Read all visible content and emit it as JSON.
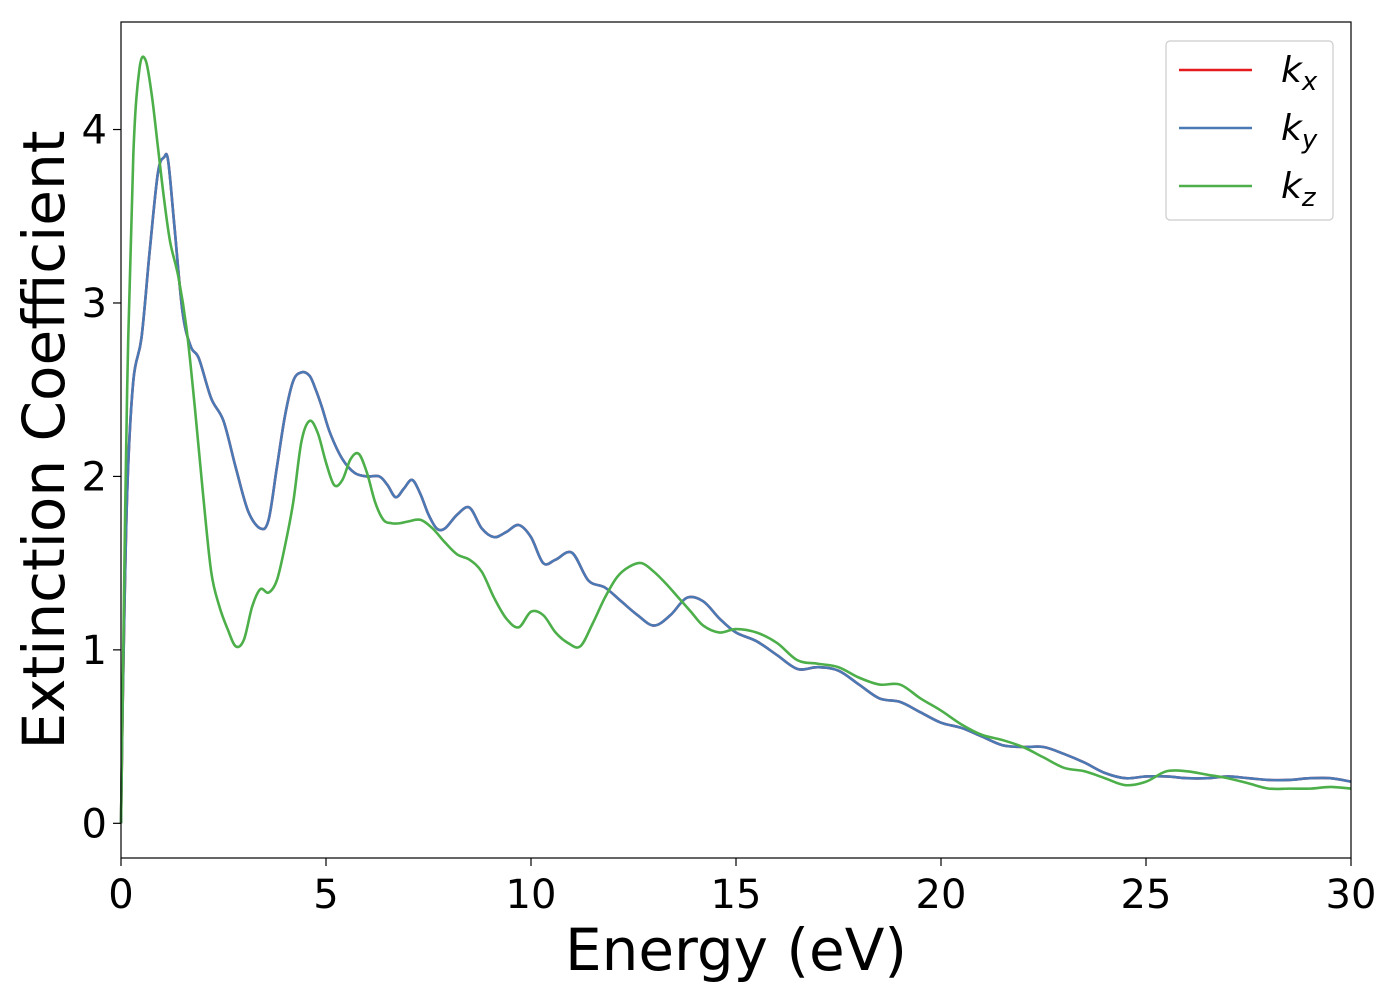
{
  "chart_data": {
    "type": "line",
    "xlabel": "Energy (eV)",
    "ylabel": "Extinction Coefficient",
    "xlim": [
      0,
      30
    ],
    "ylim": [
      -0.2,
      4.62
    ],
    "xticks": [
      0,
      5,
      10,
      15,
      20,
      25,
      30
    ],
    "yticks": [
      0,
      1,
      2,
      3,
      4
    ],
    "grid": false,
    "legend_position": "top-right",
    "series": [
      {
        "name": "k_x",
        "label_base": "k",
        "label_sub": "x",
        "color": "#e41a1c",
        "x": [
          0,
          0.05,
          0.15,
          0.3,
          0.5,
          0.7,
          0.9,
          1.05,
          1.15,
          1.3,
          1.5,
          1.7,
          1.9,
          2.2,
          2.5,
          2.8,
          3.1,
          3.4,
          3.6,
          3.8,
          4.0,
          4.2,
          4.4,
          4.6,
          4.75,
          4.9,
          5.1,
          5.4,
          5.7,
          6.0,
          6.3,
          6.5,
          6.7,
          6.9,
          7.1,
          7.3,
          7.5,
          7.7,
          7.9,
          8.2,
          8.5,
          8.8,
          9.1,
          9.4,
          9.7,
          10.0,
          10.3,
          10.6,
          11.0,
          11.4,
          11.8,
          12.2,
          12.6,
          13.0,
          13.4,
          13.8,
          14.2,
          14.6,
          15.0,
          15.5,
          16.0,
          16.5,
          17.0,
          17.5,
          18.0,
          18.5,
          19.0,
          19.5,
          20.0,
          20.5,
          21.0,
          21.5,
          22.0,
          22.5,
          23.0,
          23.5,
          24.0,
          24.5,
          25.0,
          25.5,
          26.0,
          26.5,
          27.0,
          27.5,
          28.0,
          28.5,
          29.0,
          29.5,
          30.0
        ],
        "y": [
          0,
          0.8,
          1.9,
          2.55,
          2.8,
          3.3,
          3.75,
          3.84,
          3.82,
          3.45,
          2.95,
          2.75,
          2.68,
          2.45,
          2.32,
          2.05,
          1.8,
          1.7,
          1.75,
          2.05,
          2.35,
          2.55,
          2.6,
          2.58,
          2.5,
          2.4,
          2.25,
          2.1,
          2.02,
          2.0,
          2.0,
          1.95,
          1.88,
          1.93,
          1.98,
          1.9,
          1.78,
          1.7,
          1.7,
          1.78,
          1.82,
          1.7,
          1.65,
          1.68,
          1.72,
          1.65,
          1.5,
          1.52,
          1.56,
          1.4,
          1.36,
          1.28,
          1.2,
          1.14,
          1.2,
          1.3,
          1.28,
          1.18,
          1.1,
          1.05,
          0.97,
          0.89,
          0.9,
          0.88,
          0.8,
          0.72,
          0.7,
          0.64,
          0.58,
          0.55,
          0.5,
          0.45,
          0.44,
          0.44,
          0.4,
          0.35,
          0.29,
          0.26,
          0.27,
          0.27,
          0.26,
          0.26,
          0.27,
          0.26,
          0.25,
          0.25,
          0.26,
          0.26,
          0.24
        ]
      },
      {
        "name": "k_y",
        "label_base": "k",
        "label_sub": "y",
        "color": "#4a7ab5",
        "x": [
          0,
          0.05,
          0.15,
          0.3,
          0.5,
          0.7,
          0.9,
          1.05,
          1.15,
          1.3,
          1.5,
          1.7,
          1.9,
          2.2,
          2.5,
          2.8,
          3.1,
          3.4,
          3.6,
          3.8,
          4.0,
          4.2,
          4.4,
          4.6,
          4.75,
          4.9,
          5.1,
          5.4,
          5.7,
          6.0,
          6.3,
          6.5,
          6.7,
          6.9,
          7.1,
          7.3,
          7.5,
          7.7,
          7.9,
          8.2,
          8.5,
          8.8,
          9.1,
          9.4,
          9.7,
          10.0,
          10.3,
          10.6,
          11.0,
          11.4,
          11.8,
          12.2,
          12.6,
          13.0,
          13.4,
          13.8,
          14.2,
          14.6,
          15.0,
          15.5,
          16.0,
          16.5,
          17.0,
          17.5,
          18.0,
          18.5,
          19.0,
          19.5,
          20.0,
          20.5,
          21.0,
          21.5,
          22.0,
          22.5,
          23.0,
          23.5,
          24.0,
          24.5,
          25.0,
          25.5,
          26.0,
          26.5,
          27.0,
          27.5,
          28.0,
          28.5,
          29.0,
          29.5,
          30.0
        ],
        "y": [
          0,
          0.8,
          1.9,
          2.55,
          2.8,
          3.3,
          3.75,
          3.84,
          3.82,
          3.45,
          2.95,
          2.75,
          2.68,
          2.45,
          2.32,
          2.05,
          1.8,
          1.7,
          1.75,
          2.05,
          2.35,
          2.55,
          2.6,
          2.58,
          2.5,
          2.4,
          2.25,
          2.1,
          2.02,
          2.0,
          2.0,
          1.95,
          1.88,
          1.93,
          1.98,
          1.9,
          1.78,
          1.7,
          1.7,
          1.78,
          1.82,
          1.7,
          1.65,
          1.68,
          1.72,
          1.65,
          1.5,
          1.52,
          1.56,
          1.4,
          1.36,
          1.28,
          1.2,
          1.14,
          1.2,
          1.3,
          1.28,
          1.18,
          1.1,
          1.05,
          0.97,
          0.89,
          0.9,
          0.88,
          0.8,
          0.72,
          0.7,
          0.64,
          0.58,
          0.55,
          0.5,
          0.45,
          0.44,
          0.44,
          0.4,
          0.35,
          0.29,
          0.26,
          0.27,
          0.27,
          0.26,
          0.26,
          0.27,
          0.26,
          0.25,
          0.25,
          0.26,
          0.26,
          0.24
        ]
      },
      {
        "name": "k_z",
        "label_base": "k",
        "label_sub": "z",
        "color": "#4daf4a",
        "x": [
          0,
          0.05,
          0.15,
          0.3,
          0.45,
          0.6,
          0.75,
          0.9,
          1.05,
          1.2,
          1.4,
          1.6,
          1.8,
          2.0,
          2.2,
          2.4,
          2.6,
          2.8,
          3.0,
          3.2,
          3.4,
          3.6,
          3.8,
          4.0,
          4.2,
          4.4,
          4.6,
          4.8,
          5.0,
          5.2,
          5.4,
          5.6,
          5.8,
          6.0,
          6.2,
          6.4,
          6.6,
          6.8,
          7.0,
          7.3,
          7.6,
          7.9,
          8.2,
          8.5,
          8.8,
          9.1,
          9.4,
          9.7,
          10.0,
          10.3,
          10.6,
          10.9,
          11.2,
          11.5,
          11.8,
          12.1,
          12.4,
          12.7,
          13.0,
          13.3,
          13.6,
          13.9,
          14.2,
          14.6,
          15.0,
          15.5,
          16.0,
          16.5,
          17.0,
          17.5,
          18.0,
          18.5,
          19.0,
          19.5,
          20.0,
          20.5,
          21.0,
          21.5,
          22.0,
          22.5,
          23.0,
          23.5,
          24.0,
          24.5,
          25.0,
          25.5,
          26.0,
          26.5,
          27.0,
          27.5,
          28.0,
          28.5,
          29.0,
          29.5,
          30.0
        ],
        "y": [
          0,
          0.9,
          2.5,
          3.85,
          4.35,
          4.4,
          4.2,
          3.9,
          3.6,
          3.35,
          3.15,
          2.85,
          2.4,
          1.9,
          1.45,
          1.25,
          1.12,
          1.02,
          1.06,
          1.25,
          1.35,
          1.33,
          1.4,
          1.6,
          1.85,
          2.2,
          2.32,
          2.25,
          2.08,
          1.95,
          1.98,
          2.1,
          2.13,
          2.02,
          1.85,
          1.75,
          1.73,
          1.73,
          1.74,
          1.75,
          1.7,
          1.62,
          1.55,
          1.52,
          1.45,
          1.3,
          1.18,
          1.13,
          1.22,
          1.2,
          1.1,
          1.04,
          1.02,
          1.15,
          1.3,
          1.42,
          1.48,
          1.5,
          1.45,
          1.38,
          1.3,
          1.22,
          1.14,
          1.1,
          1.12,
          1.1,
          1.04,
          0.94,
          0.92,
          0.9,
          0.84,
          0.8,
          0.8,
          0.72,
          0.65,
          0.57,
          0.51,
          0.48,
          0.44,
          0.38,
          0.32,
          0.3,
          0.26,
          0.22,
          0.24,
          0.3,
          0.3,
          0.28,
          0.26,
          0.23,
          0.2,
          0.2,
          0.2,
          0.21,
          0.2
        ]
      }
    ]
  }
}
